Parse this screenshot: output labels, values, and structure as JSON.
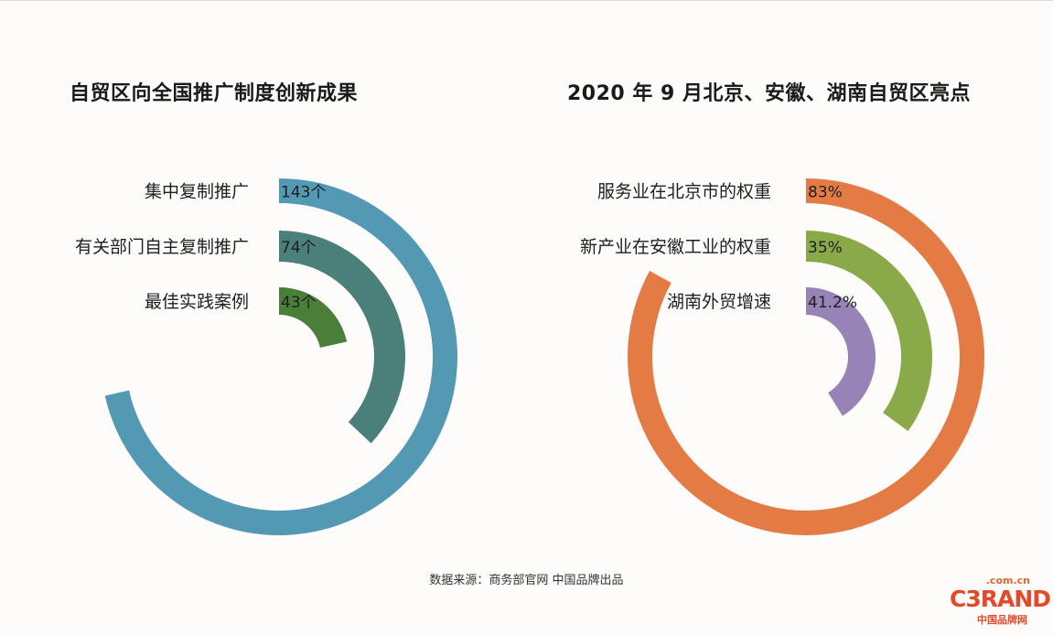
{
  "chart_data": [
    {
      "type": "radial_bar",
      "title": "自贸区向全国推广制度创新成果",
      "categories": [
        "集中复制推广",
        "有关部门自主复制推广",
        "最佳实践案例"
      ],
      "values": [
        143,
        74,
        43
      ],
      "value_labels": [
        "143个",
        "74个",
        "43个"
      ],
      "colors": [
        "#5499b4",
        "#4a8079",
        "#4a7f3a"
      ]
    },
    {
      "type": "radial_bar",
      "title": "2020 年 9 月北京、安徽、湖南自贸区亮点",
      "categories": [
        "服务业在北京市的权重",
        "新产业在安徽工业的权重",
        "湖南外贸增速"
      ],
      "values": [
        83,
        35,
        41.2
      ],
      "value_labels": [
        "83%",
        "35%",
        "41.2%"
      ],
      "colors": [
        "#e47b45",
        "#8aaa4a",
        "#9883b7"
      ]
    }
  ],
  "footer": {
    "source": "数据来源：商务部官网 中国品牌出品"
  },
  "logo": {
    "domain": ".com.cn",
    "word": "C3RAND",
    "cn": "中国品牌网"
  }
}
